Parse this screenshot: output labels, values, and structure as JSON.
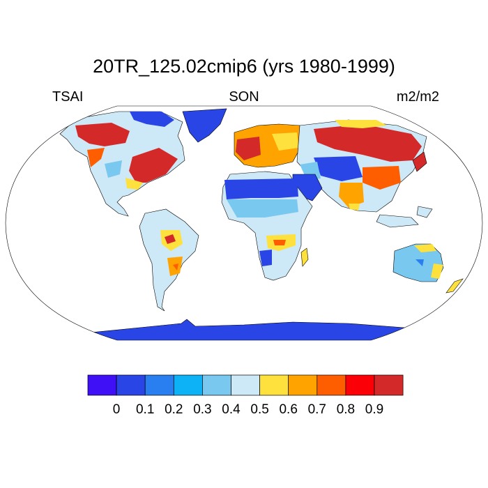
{
  "title": "20TR_125.02cmip6 (yrs 1980-1999)",
  "subtitle_left": "TSAI",
  "subtitle_center": "SON",
  "subtitle_right": "m2/m2",
  "colorbar": {
    "colors": [
      "#3f0ff5",
      "#2a45e6",
      "#2a7ff0",
      "#0cb2f5",
      "#78c8ef",
      "#cde8f6",
      "#fee13c",
      "#ffa300",
      "#ff5e00",
      "#fb0007",
      "#d32a29"
    ],
    "tick_labels": [
      "0",
      "0.1",
      "0.2",
      "0.3",
      "0.4",
      "0.5",
      "0.6",
      "0.7",
      "0.8",
      "0.9"
    ]
  }
}
